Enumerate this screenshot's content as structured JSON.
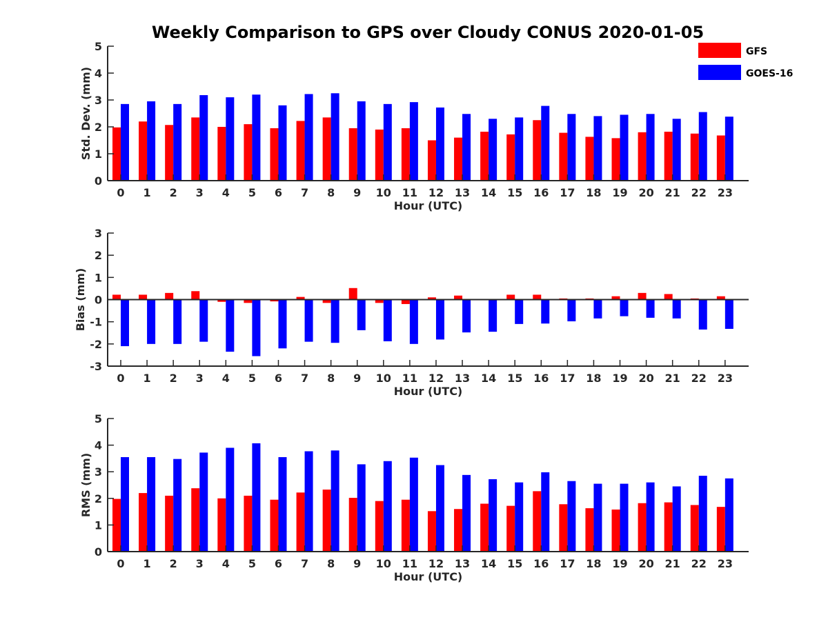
{
  "title": "Weekly Comparison to GPS over Cloudy CONUS 2020-01-05",
  "legend": {
    "placement": "top-right",
    "items": [
      {
        "label": "GFS",
        "color": "#ff0000"
      },
      {
        "label": "GOES-16",
        "color": "#0000ff"
      }
    ]
  },
  "chart_data": [
    {
      "type": "bar",
      "xlabel": "Hour (UTC)",
      "ylabel": "Std. Dev. (mm)",
      "ylim": [
        0,
        5
      ],
      "yticks": [
        0,
        1,
        2,
        3,
        4,
        5
      ],
      "categories": [
        "0",
        "1",
        "2",
        "3",
        "4",
        "5",
        "6",
        "7",
        "8",
        "9",
        "10",
        "11",
        "12",
        "13",
        "14",
        "15",
        "16",
        "17",
        "18",
        "19",
        "20",
        "21",
        "22",
        "23"
      ],
      "series": [
        {
          "name": "GFS",
          "color": "#ff0000",
          "values": [
            1.98,
            2.2,
            2.07,
            2.35,
            2.0,
            2.1,
            1.95,
            2.22,
            2.35,
            1.95,
            1.9,
            1.95,
            1.5,
            1.6,
            1.82,
            1.72,
            2.25,
            1.78,
            1.63,
            1.58,
            1.8,
            1.82,
            1.75,
            1.68
          ]
        },
        {
          "name": "GOES-16",
          "color": "#0000ff",
          "values": [
            2.85,
            2.95,
            2.85,
            3.18,
            3.1,
            3.2,
            2.8,
            3.22,
            3.25,
            2.95,
            2.85,
            2.92,
            2.72,
            2.48,
            2.3,
            2.35,
            2.78,
            2.48,
            2.4,
            2.45,
            2.48,
            2.3,
            2.55,
            2.38
          ]
        }
      ]
    },
    {
      "type": "bar",
      "xlabel": "Hour (UTC)",
      "ylabel": "Bias (mm)",
      "ylim": [
        -3,
        3
      ],
      "yticks": [
        -3,
        -2,
        -1,
        0,
        1,
        2,
        3
      ],
      "categories": [
        "0",
        "1",
        "2",
        "3",
        "4",
        "5",
        "6",
        "7",
        "8",
        "9",
        "10",
        "11",
        "12",
        "13",
        "14",
        "15",
        "16",
        "17",
        "18",
        "19",
        "20",
        "21",
        "22",
        "23"
      ],
      "series": [
        {
          "name": "GFS",
          "color": "#ff0000",
          "values": [
            0.22,
            0.22,
            0.3,
            0.38,
            -0.1,
            -0.15,
            -0.08,
            0.12,
            -0.15,
            0.52,
            -0.15,
            -0.2,
            0.1,
            0.18,
            0.0,
            0.22,
            0.22,
            0.05,
            0.05,
            0.15,
            0.3,
            0.25,
            0.05,
            0.15
          ]
        },
        {
          "name": "GOES-16",
          "color": "#0000ff",
          "values": [
            -2.1,
            -2.0,
            -2.0,
            -1.9,
            -2.35,
            -2.55,
            -2.2,
            -1.9,
            -1.95,
            -1.38,
            -1.88,
            -2.0,
            -1.8,
            -1.48,
            -1.45,
            -1.1,
            -1.08,
            -0.98,
            -0.85,
            -0.75,
            -0.82,
            -0.85,
            -1.35,
            -1.32
          ]
        }
      ]
    },
    {
      "type": "bar",
      "xlabel": "Hour (UTC)",
      "ylabel": "RMS (mm)",
      "ylim": [
        0,
        5
      ],
      "yticks": [
        0,
        1,
        2,
        3,
        4,
        5
      ],
      "categories": [
        "0",
        "1",
        "2",
        "3",
        "4",
        "5",
        "6",
        "7",
        "8",
        "9",
        "10",
        "11",
        "12",
        "13",
        "14",
        "15",
        "16",
        "17",
        "18",
        "19",
        "20",
        "21",
        "22",
        "23"
      ],
      "series": [
        {
          "name": "GFS",
          "color": "#ff0000",
          "values": [
            1.98,
            2.2,
            2.1,
            2.38,
            2.0,
            2.1,
            1.95,
            2.22,
            2.33,
            2.02,
            1.9,
            1.95,
            1.52,
            1.6,
            1.8,
            1.72,
            2.27,
            1.78,
            1.63,
            1.58,
            1.82,
            1.85,
            1.75,
            1.68
          ]
        },
        {
          "name": "GOES-16",
          "color": "#0000ff",
          "values": [
            3.55,
            3.55,
            3.48,
            3.72,
            3.9,
            4.07,
            3.55,
            3.77,
            3.8,
            3.28,
            3.4,
            3.53,
            3.25,
            2.88,
            2.72,
            2.6,
            2.98,
            2.65,
            2.55,
            2.55,
            2.6,
            2.45,
            2.85,
            2.75
          ]
        }
      ]
    }
  ]
}
